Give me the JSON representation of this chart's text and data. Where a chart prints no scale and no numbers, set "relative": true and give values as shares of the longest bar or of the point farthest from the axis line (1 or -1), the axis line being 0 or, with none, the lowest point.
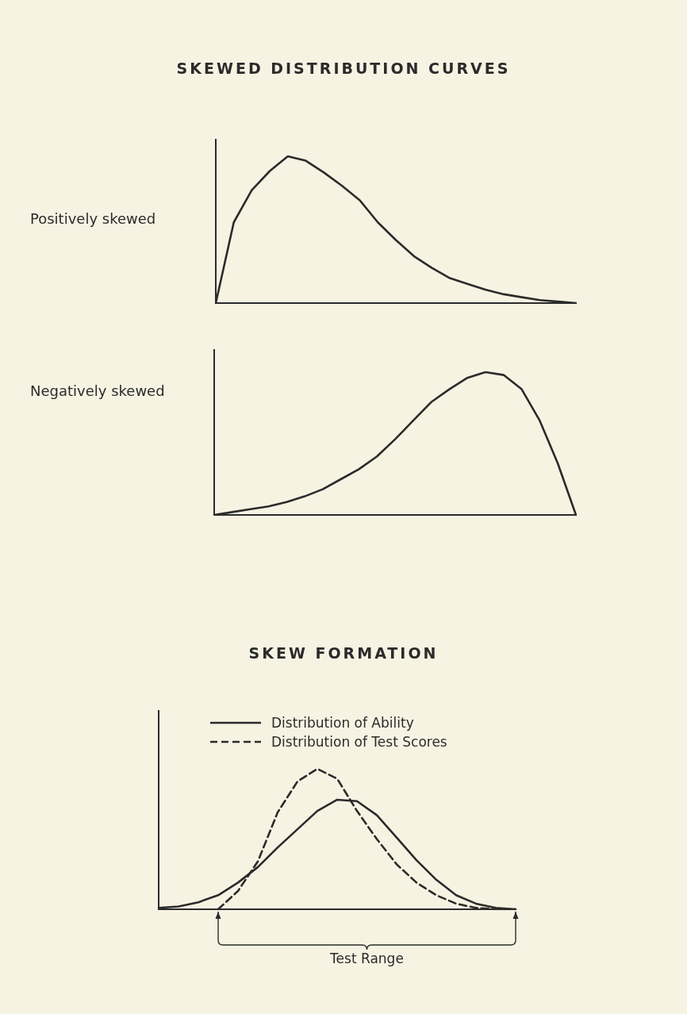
{
  "chart_data": [
    {
      "type": "line",
      "title": "SKEWED DISTRIBUTION CURVES",
      "ylabel": "Positively skewed",
      "relative": true,
      "categories": [
        null,
        null,
        null,
        null,
        null,
        null,
        null,
        null,
        null,
        null,
        null,
        null,
        null,
        null,
        null,
        null,
        null,
        null,
        null,
        null,
        null
      ],
      "series": [
        {
          "color": "#2b2b2b",
          "values": [
            0,
            0.55,
            0.77,
            0.9,
            1,
            0.97,
            0.89,
            0.8,
            0.7,
            0.55,
            0.43,
            0.32,
            0.24,
            0.17,
            0.13,
            0.09,
            0.06,
            0.04,
            0.02,
            0.01,
            0
          ]
        }
      ],
      "legend": false,
      "grid": false,
      "marker": "none",
      "line_style": "solid"
    },
    {
      "type": "line",
      "ylabel": "Negatively skewed",
      "relative": true,
      "categories": [
        null,
        null,
        null,
        null,
        null,
        null,
        null,
        null,
        null,
        null,
        null,
        null,
        null,
        null,
        null,
        null,
        null,
        null,
        null,
        null,
        null
      ],
      "series": [
        {
          "color": "#2b2b2b",
          "values": [
            0,
            0.02,
            0.04,
            0.06,
            0.09,
            0.13,
            0.18,
            0.25,
            0.32,
            0.41,
            0.53,
            0.66,
            0.79,
            0.88,
            0.96,
            1,
            0.98,
            0.88,
            0.66,
            0.36,
            0
          ]
        }
      ],
      "legend": false,
      "grid": false,
      "marker": "none",
      "line_style": "solid"
    },
    {
      "type": "line",
      "title": "SKEW FORMATION",
      "relative": true,
      "categories": [
        null,
        null,
        null,
        null,
        null,
        null,
        null,
        null,
        null,
        null,
        null,
        null,
        null,
        null,
        null,
        null,
        null,
        null,
        null
      ],
      "series": [
        {
          "name": "Distribution of Ability",
          "color": "#2b2b2b",
          "line_style": "solid",
          "values": [
            0.01,
            0.02,
            0.05,
            0.1,
            0.19,
            0.3,
            0.44,
            0.57,
            0.7,
            0.78,
            0.77,
            0.67,
            0.51,
            0.35,
            0.21,
            0.1,
            0.04,
            0.01,
            0
          ]
        },
        {
          "name": "Distribution of Test Scores",
          "color": "#2b2b2b",
          "line_style": "dashed",
          "values": [
            null,
            null,
            null,
            0,
            0.13,
            0.34,
            0.69,
            0.91,
            1,
            0.93,
            0.7,
            0.5,
            0.32,
            0.19,
            0.1,
            0.04,
            0.01,
            0,
            0
          ]
        }
      ],
      "annotations": [
        "Test Range"
      ],
      "legend": "top right",
      "grid": false,
      "marker": "none"
    }
  ]
}
